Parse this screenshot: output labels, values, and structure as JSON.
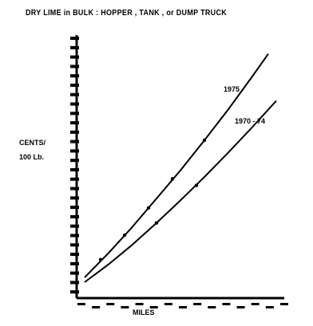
{
  "chart_data": {
    "type": "line",
    "title": "DRY LIME in BULK : HOPPER , TANK , or DUMP TRUCK",
    "subtitle": "",
    "xlabel": "MILES",
    "ylabel": "CENTS/\n100 Lb.",
    "xlim": [
      0,
      260
    ],
    "ylim": [
      0,
      28
    ],
    "y_ticks": 28,
    "x_ticks": 14,
    "grid": false,
    "series": [
      {
        "name": "1975",
        "x": [
          10,
          40,
          70,
          100,
          130,
          160,
          190,
          220,
          240
        ],
        "y": [
          2.2,
          4.8,
          7.6,
          10.6,
          13.6,
          16.8,
          20.1,
          23.6,
          26.0
        ],
        "markers": [
          [
            30,
            4.1
          ],
          [
            60,
            6.7
          ],
          [
            90,
            9.6
          ],
          [
            120,
            12.7
          ],
          [
            160,
            16.8
          ]
        ]
      },
      {
        "name": "1970 - 74",
        "x": [
          10,
          40,
          70,
          100,
          130,
          160,
          190,
          220,
          250
        ],
        "y": [
          1.7,
          3.6,
          5.7,
          8.0,
          10.4,
          12.9,
          15.5,
          18.2,
          21.0
        ],
        "markers": [
          [
            100,
            8.0
          ],
          [
            150,
            12.0
          ]
        ]
      }
    ]
  }
}
